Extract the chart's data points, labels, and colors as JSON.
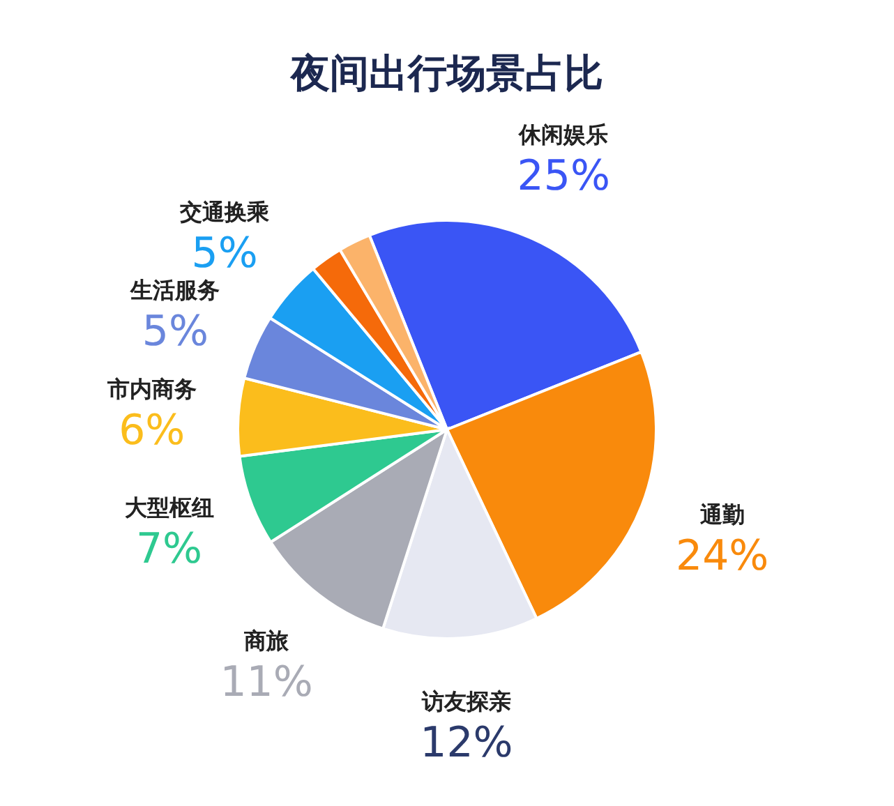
{
  "chart_data": {
    "type": "pie",
    "title": "夜间出行场景占比",
    "categories": [
      "休闲娱乐",
      "通勤",
      "访友探亲",
      "商旅",
      "大型枢纽",
      "市内商务",
      "生活服务",
      "交通换乘",
      null,
      null
    ],
    "values": [
      25,
      24,
      12,
      11,
      7,
      6,
      5,
      5,
      2.5,
      2.5
    ],
    "value_labels": [
      "25%",
      "24%",
      "12%",
      "11%",
      "7%",
      "6%",
      "5%",
      "5%",
      null,
      null
    ],
    "colors": [
      "#3a55f5",
      "#f98a0c",
      "#e6e8f2",
      "#a9abb5",
      "#2ec990",
      "#fbbd1c",
      "#6a86dc",
      "#1a9ff2",
      "#f56a0a",
      "#fbb36a"
    ],
    "legend": false
  }
}
